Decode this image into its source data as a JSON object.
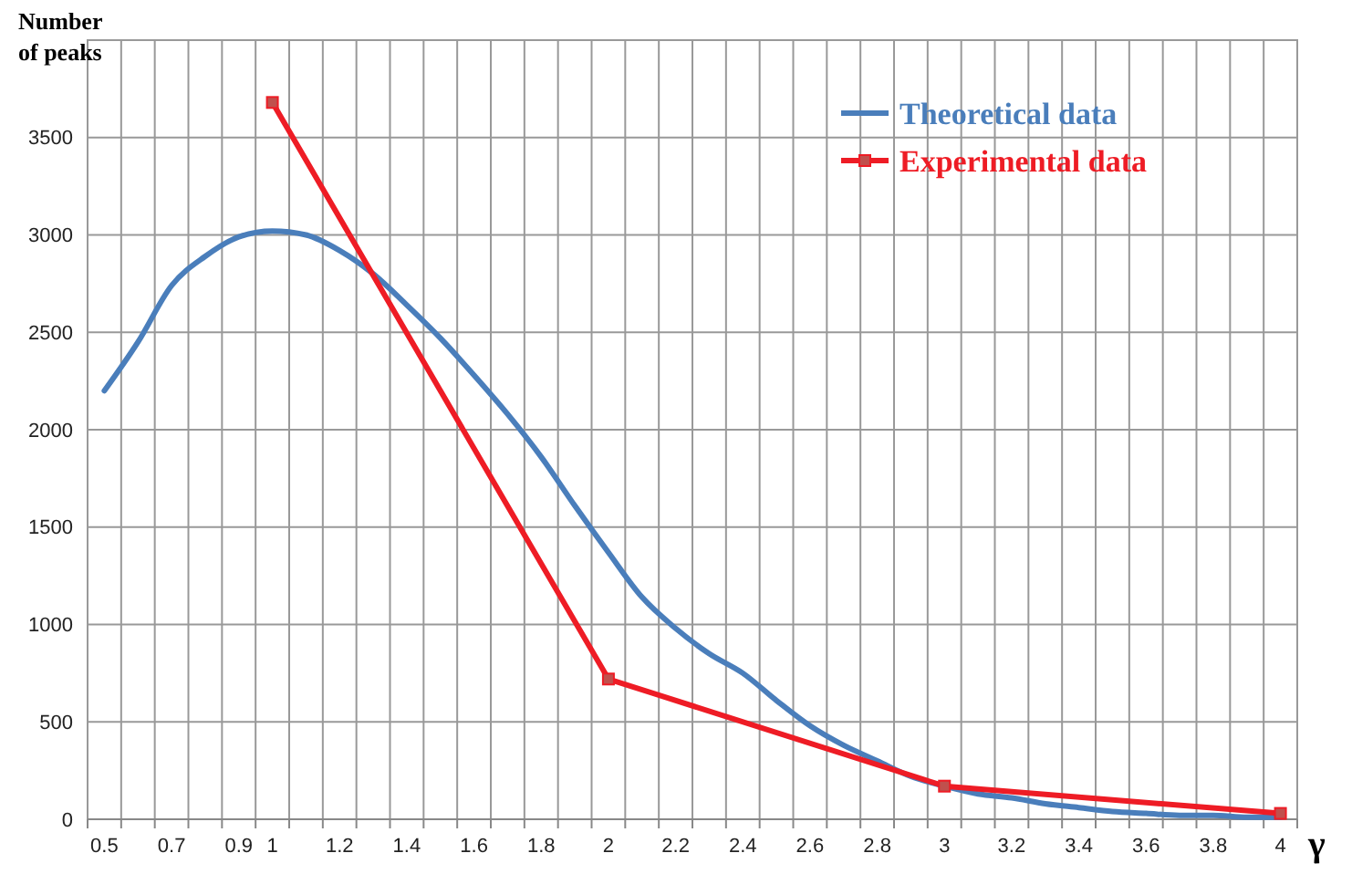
{
  "chart_data": {
    "type": "line",
    "ylabel": "Number of peaks",
    "xlabel": "γ",
    "categories": [
      "0.5",
      null,
      "0.7",
      null,
      "0.9",
      "1",
      null,
      "1.2",
      null,
      "1.4",
      null,
      "1.6",
      null,
      "1.8",
      null,
      "2",
      null,
      "2.2",
      null,
      "2.4",
      null,
      "2.6",
      null,
      "2.8",
      null,
      "3",
      null,
      "3.2",
      null,
      "3.4",
      null,
      "3.6",
      null,
      "3.8",
      null,
      "4"
    ],
    "series": [
      {
        "name": "Theoretical data",
        "color": "#4a7ebb",
        "marker": "none",
        "values": [
          2200,
          2450,
          2740,
          2890,
          2990,
          3020,
          3000,
          2920,
          2800,
          2640,
          2470,
          2280,
          2080,
          1860,
          1610,
          1370,
          1140,
          980,
          850,
          750,
          610,
          480,
          380,
          300,
          220,
          170,
          130,
          110,
          80,
          60,
          40,
          30,
          20,
          20,
          10,
          10
        ]
      },
      {
        "name": "Experimental data",
        "color": "#ee1c25",
        "marker": "square",
        "x": [
          "1",
          "2",
          "3",
          "4"
        ],
        "values": [
          3680,
          720,
          170,
          30
        ]
      }
    ],
    "ylim": [
      0,
      4000
    ],
    "yticks": [
      0,
      500,
      1000,
      1500,
      2000,
      2500,
      3000,
      3500
    ],
    "grid": true,
    "legend": "top right"
  }
}
